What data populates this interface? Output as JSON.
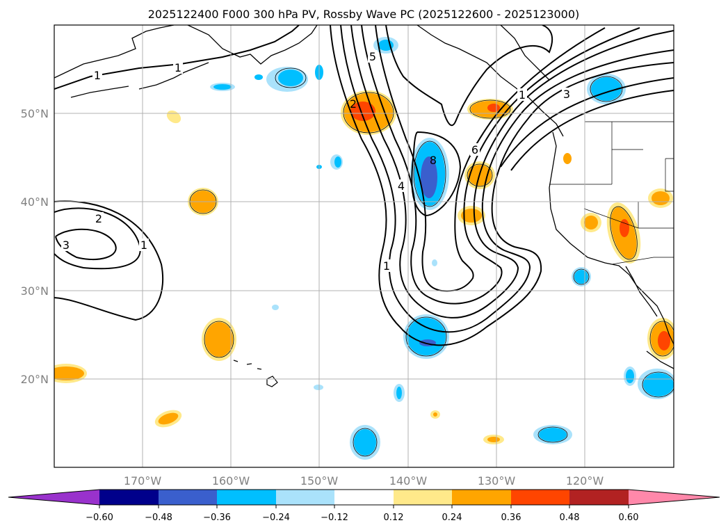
{
  "title": "2025122400 F000 300 hPa PV, Rossby Wave PC (2025122600 - 2025123000)",
  "map": {
    "lon_range": [
      -180,
      -110
    ],
    "lat_range": [
      10,
      60
    ],
    "lat_labels": [
      "20°N",
      "30°N",
      "40°N",
      "50°N"
    ],
    "lon_labels": [
      "170°W",
      "160°W",
      "150°W",
      "140°W",
      "130°W",
      "120°W"
    ]
  },
  "contour_labels": [
    "1",
    "1",
    "2",
    "3",
    "1",
    "5",
    "2",
    "4",
    "1",
    "8",
    "6",
    "3",
    "1"
  ],
  "colorbar": {
    "colors": [
      "#9932cc",
      "#00008b",
      "#3a5fcd",
      "#00bfff",
      "#aae2fb",
      "#ffffff",
      "#ffe98a",
      "#ffa500",
      "#ff4500",
      "#b22222",
      "#ff88aa"
    ],
    "tick_labels": [
      "−0.60",
      "−0.48",
      "−0.36",
      "−0.24",
      "−0.12",
      "0.12",
      "0.24",
      "0.36",
      "0.48",
      "0.60"
    ]
  }
}
